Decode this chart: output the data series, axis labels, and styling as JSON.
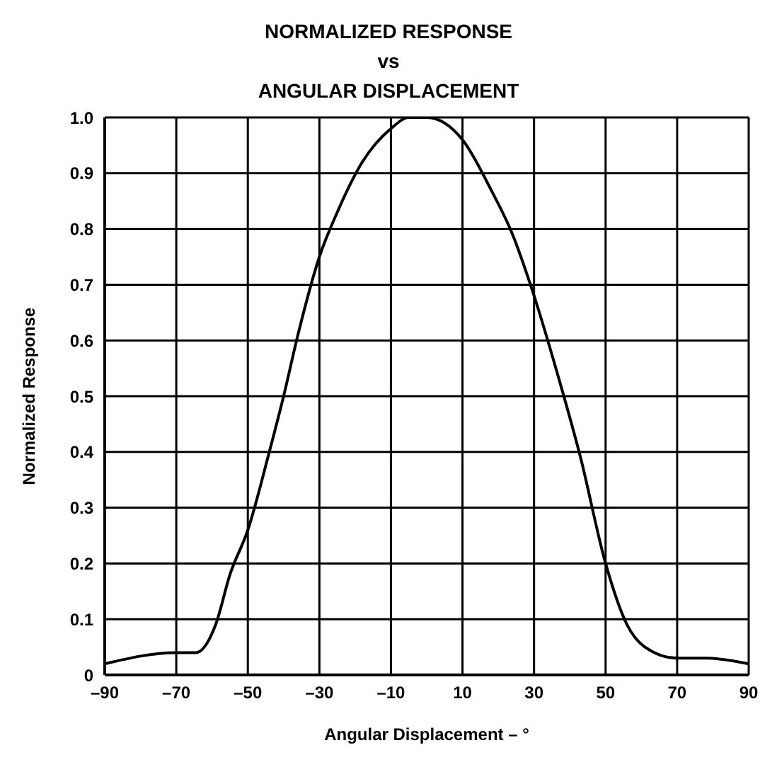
{
  "chart_data": {
    "type": "line",
    "title": "NORMALIZED RESPONSE\nvs\nANGULAR DISPLACEMENT",
    "xlabel": "Angular Displacement – °",
    "ylabel": "Normalized Response",
    "x": [
      -90,
      -70,
      -64.5,
      -59,
      -55,
      -50,
      -44,
      -40,
      -36,
      -30,
      -25,
      -18,
      -10,
      -5,
      0,
      5,
      10,
      18,
      24,
      29,
      37,
      43,
      50,
      56,
      61,
      70,
      78,
      90
    ],
    "series": [
      {
        "color": "#000000",
        "values": [
          0.02,
          0.04,
          0.04,
          0.09,
          0.18,
          0.26,
          0.4,
          0.5,
          0.61,
          0.75,
          0.83,
          0.92,
          0.98,
          1.0,
          1.0,
          0.99,
          0.96,
          0.87,
          0.79,
          0.7,
          0.53,
          0.39,
          0.2,
          0.09,
          0.05,
          0.03,
          0.03,
          0.02
        ]
      }
    ],
    "xlim": [
      -90,
      90
    ],
    "xticks": [
      {
        "value": -90,
        "label": "–90"
      },
      {
        "value": -70,
        "label": "–70"
      },
      {
        "value": -50,
        "label": "–50"
      },
      {
        "value": -30,
        "label": "–30"
      },
      {
        "value": -10,
        "label": "–10"
      },
      10,
      30,
      50,
      70,
      90
    ],
    "ylim": [
      0,
      1
    ],
    "yticks": [
      0,
      0.1,
      0.2,
      0.3,
      0.4,
      0.5,
      0.6,
      0.7,
      0.8,
      0.9,
      {
        "value": 1,
        "label": "1.0"
      }
    ],
    "grid": true,
    "marker": "none",
    "line_style": "solid"
  }
}
